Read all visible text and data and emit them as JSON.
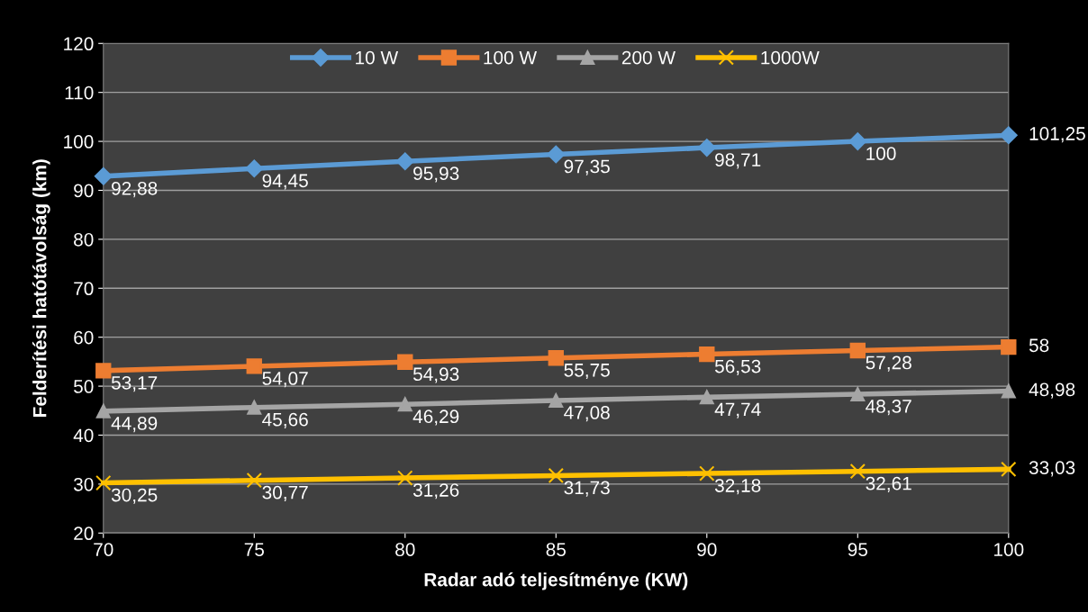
{
  "chart_data": {
    "type": "line",
    "xlabel": "Radar adó teljesítménye (KW)",
    "ylabel": "Felderítési hatótávolság (km)",
    "x": [
      70,
      75,
      80,
      85,
      90,
      95,
      100
    ],
    "series": [
      {
        "name": "10 W",
        "color": "#5b9bd5",
        "marker": "diamond",
        "values": [
          92.88,
          94.45,
          95.93,
          97.35,
          98.71,
          100,
          101.25
        ],
        "value_labels": [
          "92,88",
          "94,45",
          "95,93",
          "97,35",
          "98,71",
          "100",
          "101,25"
        ]
      },
      {
        "name": "100 W",
        "color": "#ed7d31",
        "marker": "square",
        "values": [
          53.17,
          54.07,
          54.93,
          55.75,
          56.53,
          57.28,
          58
        ],
        "value_labels": [
          "53,17",
          "54,07",
          "54,93",
          "55,75",
          "56,53",
          "57,28",
          "58"
        ]
      },
      {
        "name": "200 W",
        "color": "#a5a5a5",
        "marker": "triangle",
        "values": [
          44.89,
          45.66,
          46.29,
          47.08,
          47.74,
          48.37,
          48.98
        ],
        "value_labels": [
          "44,89",
          "45,66",
          "46,29",
          "47,08",
          "47,74",
          "48,37",
          "48,98"
        ]
      },
      {
        "name": "1000W",
        "color": "#ffc000",
        "marker": "cross",
        "values": [
          30.25,
          30.77,
          31.26,
          31.73,
          32.18,
          32.61,
          33.03
        ],
        "value_labels": [
          "30,25",
          "30,77",
          "31,26",
          "31,73",
          "32,18",
          "32,61",
          "33,03"
        ]
      }
    ],
    "xlim": [
      70,
      100
    ],
    "xticks": [
      70,
      75,
      80,
      85,
      90,
      95,
      100
    ],
    "ylim": [
      20,
      120
    ],
    "yticks": [
      20,
      30,
      40,
      50,
      60,
      70,
      80,
      90,
      100,
      110,
      120
    ],
    "grid": "y",
    "legend": "top",
    "line_style": "solid"
  }
}
